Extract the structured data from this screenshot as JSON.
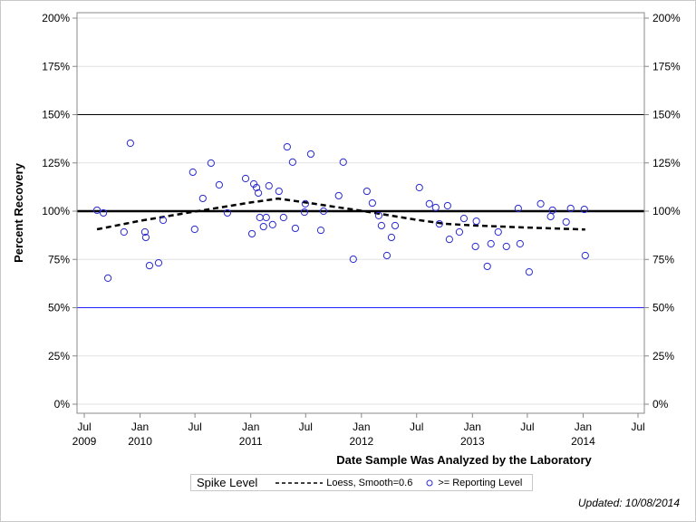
{
  "chart_data": {
    "type": "scatter",
    "xlabel": "Date Sample Was Analyzed by the Laboratory",
    "ylabel": "Percent Recovery",
    "xlim": [
      "2009-06-01",
      "2014-07-31"
    ],
    "ylim": [
      0,
      200
    ],
    "y_ticks": [
      "0%",
      "25%",
      "50%",
      "75%",
      "100%",
      "125%",
      "150%",
      "175%",
      "200%"
    ],
    "x_ticks": [
      {
        "date": "2009-07-01",
        "label": "Jul",
        "year": "2009"
      },
      {
        "date": "2010-01-01",
        "label": "Jan",
        "year": "2010"
      },
      {
        "date": "2010-07-01",
        "label": "Jul",
        "year": ""
      },
      {
        "date": "2011-01-01",
        "label": "Jan",
        "year": "2011"
      },
      {
        "date": "2011-07-01",
        "label": "Jul",
        "year": ""
      },
      {
        "date": "2012-01-01",
        "label": "Jan",
        "year": "2012"
      },
      {
        "date": "2012-07-01",
        "label": "Jul",
        "year": ""
      },
      {
        "date": "2013-01-01",
        "label": "Jan",
        "year": "2013"
      },
      {
        "date": "2013-07-01",
        "label": "Jul",
        "year": ""
      },
      {
        "date": "2014-01-01",
        "label": "Jan",
        "year": "2014"
      },
      {
        "date": "2014-07-01",
        "label": "Jul",
        "year": ""
      }
    ],
    "grid": true,
    "reference_lines": [
      {
        "value": 150,
        "color": "#000000",
        "style": "thin"
      },
      {
        "value": 100,
        "color": "#000000",
        "style": "thick"
      },
      {
        "value": 50,
        "color": "#2020ff",
        "style": "thin"
      }
    ],
    "series": [
      {
        "name": ">= Reporting Level",
        "type": "scatter",
        "color": "#2a2ad0",
        "points": [
          [
            "2009-08-12",
            100.5
          ],
          [
            "2009-09-02",
            99.1
          ],
          [
            "2009-09-17",
            65.3
          ],
          [
            "2009-11-09",
            89.2
          ],
          [
            "2009-11-30",
            135.2
          ],
          [
            "2010-01-17",
            89.2
          ],
          [
            "2010-01-20",
            86.4
          ],
          [
            "2010-02-01",
            71.8
          ],
          [
            "2010-03-03",
            73.2
          ],
          [
            "2010-03-18",
            95.3
          ],
          [
            "2010-06-24",
            120.2
          ],
          [
            "2010-06-30",
            90.6
          ],
          [
            "2010-07-27",
            106.6
          ],
          [
            "2010-08-23",
            124.9
          ],
          [
            "2010-09-19",
            113.6
          ],
          [
            "2010-10-16",
            99.1
          ],
          [
            "2010-12-15",
            116.9
          ],
          [
            "2011-01-05",
            88.3
          ],
          [
            "2011-01-11",
            114.1
          ],
          [
            "2011-01-20",
            112.2
          ],
          [
            "2011-01-26",
            109.4
          ],
          [
            "2011-01-31",
            96.7
          ],
          [
            "2011-02-12",
            92.0
          ],
          [
            "2011-02-21",
            96.7
          ],
          [
            "2011-03-02",
            113.1
          ],
          [
            "2011-03-14",
            93.0
          ],
          [
            "2011-04-04",
            110.3
          ],
          [
            "2011-04-19",
            96.7
          ],
          [
            "2011-05-01",
            133.3
          ],
          [
            "2011-05-19",
            125.4
          ],
          [
            "2011-05-28",
            91.1
          ],
          [
            "2011-06-27",
            99.5
          ],
          [
            "2011-06-30",
            103.8
          ],
          [
            "2011-07-18",
            129.6
          ],
          [
            "2011-08-20",
            90.1
          ],
          [
            "2011-08-29",
            100.0
          ],
          [
            "2011-10-18",
            108.0
          ],
          [
            "2011-11-02",
            125.4
          ],
          [
            "2011-12-05",
            75.1
          ],
          [
            "2012-01-19",
            110.3
          ],
          [
            "2012-02-06",
            104.2
          ],
          [
            "2012-02-27",
            97.7
          ],
          [
            "2012-03-07",
            92.5
          ],
          [
            "2012-03-25",
            77.0
          ],
          [
            "2012-04-09",
            86.4
          ],
          [
            "2012-04-21",
            92.5
          ],
          [
            "2012-07-10",
            112.2
          ],
          [
            "2012-08-12",
            103.8
          ],
          [
            "2012-09-02",
            101.9
          ],
          [
            "2012-09-14",
            93.4
          ],
          [
            "2012-10-11",
            102.8
          ],
          [
            "2012-10-17",
            85.4
          ],
          [
            "2012-11-19",
            89.2
          ],
          [
            "2012-12-04",
            96.2
          ],
          [
            "2013-01-11",
            81.7
          ],
          [
            "2013-01-14",
            94.8
          ],
          [
            "2013-02-19",
            71.4
          ],
          [
            "2013-03-03",
            83.1
          ],
          [
            "2013-03-27",
            89.2
          ],
          [
            "2013-04-23",
            81.7
          ],
          [
            "2013-06-01",
            101.4
          ],
          [
            "2013-06-07",
            83.1
          ],
          [
            "2013-07-07",
            68.5
          ],
          [
            "2013-08-14",
            103.8
          ],
          [
            "2013-09-16",
            97.2
          ],
          [
            "2013-09-22",
            100.5
          ],
          [
            "2013-11-06",
            94.4
          ],
          [
            "2013-11-21",
            101.4
          ],
          [
            "2014-01-05",
            100.9
          ],
          [
            "2014-01-08",
            77.0
          ]
        ]
      },
      {
        "name": "Loess, Smooth=0.6",
        "type": "line",
        "color": "#000000",
        "points": [
          [
            "2009-08-12",
            90.6
          ],
          [
            "2010-01-01",
            95.0
          ],
          [
            "2010-07-01",
            99.8
          ],
          [
            "2011-01-01",
            104.5
          ],
          [
            "2011-04-01",
            106.5
          ],
          [
            "2011-07-01",
            104.5
          ],
          [
            "2012-01-01",
            100.2
          ],
          [
            "2012-07-01",
            95.5
          ],
          [
            "2012-10-01",
            93.5
          ],
          [
            "2013-01-01",
            92.6
          ],
          [
            "2013-07-01",
            91.5
          ],
          [
            "2014-01-08",
            90.5
          ]
        ]
      }
    ],
    "legend": {
      "title": "Spike Level",
      "position": "bottom",
      "loess_label": "Loess, Smooth=0.6",
      "points_label": ">= Reporting Level"
    }
  },
  "footer": {
    "updated": "Updated: 10/08/2014"
  }
}
